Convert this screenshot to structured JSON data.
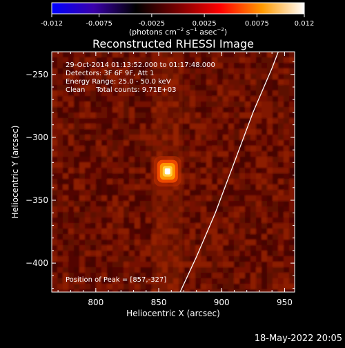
{
  "colorbar": {
    "ticks": [
      "-0.012",
      "-0.0075",
      "-0.0025",
      "0.0025",
      "0.0075",
      "0.012"
    ],
    "tick_values": [
      -0.012,
      -0.0075,
      -0.0025,
      0.0025,
      0.0075,
      0.012
    ],
    "range": [
      -0.012,
      0.012
    ],
    "colormap": [
      "#0000ff",
      "#3a00aa",
      "#000000",
      "#7a0000",
      "#ff0000",
      "#ff9a00",
      "#ffffff"
    ],
    "unit_main": "(photons cm",
    "unit_exp1": "−2",
    "unit_s": " s",
    "unit_exp2": "−1",
    "unit_asec": " asec",
    "unit_exp3": "−2",
    "unit_close": ")"
  },
  "chart_data": {
    "type": "heatmap",
    "title": "Reconstructed RHESSI Image",
    "xlabel": "Heliocentric X (arcsec)",
    "ylabel": "Heliocentric Y (arcsec)",
    "xlim": [
      765,
      958
    ],
    "ylim": [
      -423,
      -232
    ],
    "xticks": [
      800,
      850,
      900,
      950
    ],
    "yticks": [
      -250,
      -300,
      -350,
      -400
    ],
    "xtick_labels": [
      "800",
      "850",
      "900",
      "950"
    ],
    "ytick_labels": [
      "−250",
      "−300",
      "−350",
      "−400"
    ],
    "info_lines": [
      "29-Oct-2014 01:13:52.000 to 01:17:48.000",
      "Detectors: 3F 6F 9F, Att 1",
      "Energy Range: 25.0 - 50.0 keV",
      "Clean     Total counts: 9.71E+03"
    ],
    "peak_text": "Position of Peak = [857,-327]",
    "peak": [
      857,
      -327
    ],
    "limb_curve": [
      [
        867,
        -423
      ],
      [
        880,
        -395
      ],
      [
        895,
        -360
      ],
      [
        910,
        -320
      ],
      [
        925,
        -280
      ],
      [
        940,
        -245
      ],
      [
        945,
        -232
      ]
    ],
    "background_color": "#6a0e00",
    "accent_colors": [
      "#ffffff",
      "#ffd040",
      "#ff5000",
      "#8a1800",
      "#3a0400"
    ]
  },
  "footer": {
    "date": "18-May-2022 20:05"
  }
}
